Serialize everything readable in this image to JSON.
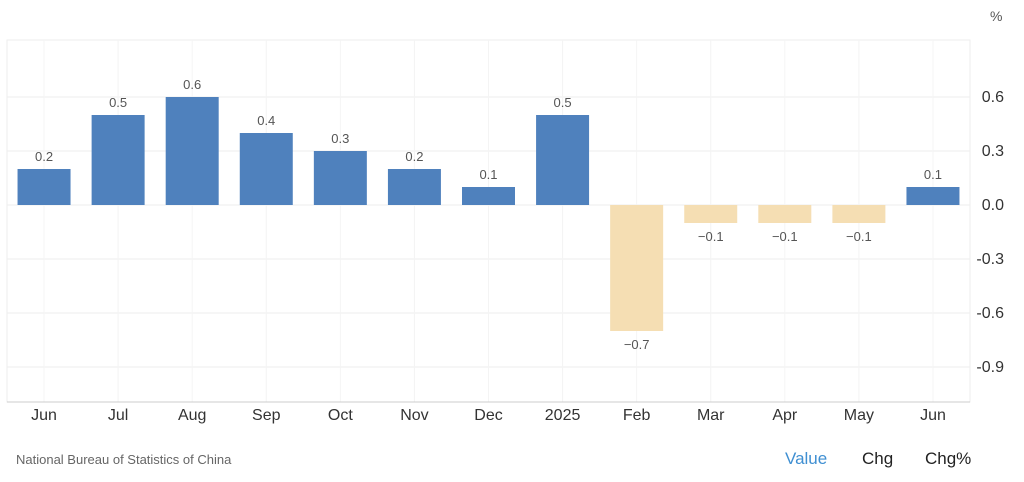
{
  "unit_label": "%",
  "source": "National Bureau of Statistics of China",
  "tabs": [
    {
      "label": "Value",
      "active": true
    },
    {
      "label": "Chg",
      "active": false
    },
    {
      "label": "Chg%",
      "active": false
    }
  ],
  "colors": {
    "positive": "#4f81bd",
    "negative": "#f5deb3",
    "active_tab": "#3f8fd2"
  },
  "chart_data": {
    "type": "bar",
    "categories": [
      "Jun",
      "Jul",
      "Aug",
      "Sep",
      "Oct",
      "Nov",
      "Dec",
      "2025",
      "Feb",
      "Mar",
      "Apr",
      "May",
      "Jun"
    ],
    "values": [
      0.2,
      0.5,
      0.6,
      0.4,
      0.3,
      0.2,
      0.1,
      0.5,
      -0.7,
      -0.1,
      -0.1,
      -0.1,
      0.1
    ],
    "data_labels": [
      "0.2",
      "0.5",
      "0.6",
      "0.4",
      "0.3",
      "0.2",
      "0.1",
      "0.5",
      "−0.7",
      "−0.1",
      "−0.1",
      "−0.1",
      "0.1"
    ],
    "y_ticks": [
      0.6,
      0.3,
      0.0,
      -0.3,
      -0.6,
      -0.9
    ],
    "y_tick_labels": [
      "0.6",
      "0.3",
      "0.0",
      "-0.3",
      "-0.6",
      "-0.9"
    ],
    "ylim": [
      -1.1,
      0.9
    ],
    "y_axis_position": "right",
    "grid": true,
    "legend": "none"
  }
}
